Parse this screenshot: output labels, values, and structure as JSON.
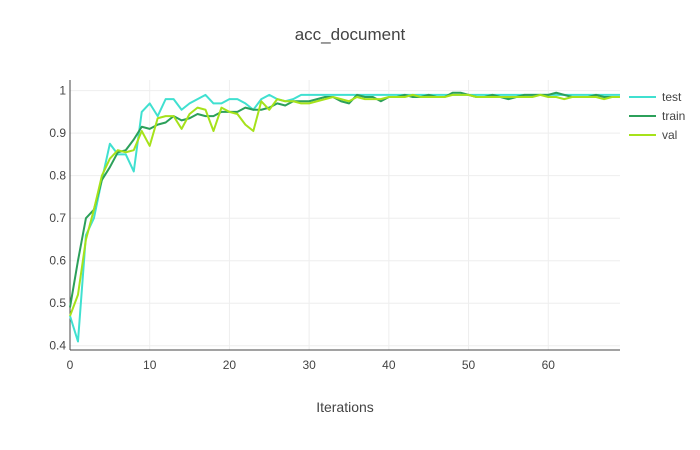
{
  "chart_data": {
    "type": "line",
    "title": "acc_document",
    "xlabel": "Iterations",
    "ylabel": "",
    "xlim": [
      0,
      69
    ],
    "ylim": [
      0.39,
      1.025
    ],
    "xticks": [
      0,
      10,
      20,
      30,
      40,
      50,
      60
    ],
    "yticks": [
      0.4,
      0.5,
      0.6,
      0.7,
      0.8,
      0.9,
      1
    ],
    "grid": true,
    "legend_position": "top-right",
    "series": [
      {
        "name": "test",
        "color": "#40e0d0",
        "x": [
          0,
          1,
          2,
          3,
          4,
          5,
          6,
          7,
          8,
          9,
          10,
          11,
          12,
          13,
          14,
          15,
          16,
          17,
          18,
          19,
          20,
          21,
          22,
          23,
          24,
          25,
          26,
          27,
          28,
          29,
          30,
          31,
          32,
          33,
          34,
          35,
          36,
          37,
          38,
          39,
          40,
          41,
          42,
          43,
          44,
          45,
          46,
          47,
          48,
          49,
          50,
          51,
          52,
          53,
          54,
          55,
          56,
          57,
          58,
          59,
          60,
          61,
          62,
          63,
          64,
          65,
          66,
          67,
          68,
          69
        ],
        "y": [
          0.47,
          0.41,
          0.66,
          0.7,
          0.79,
          0.875,
          0.85,
          0.85,
          0.81,
          0.95,
          0.97,
          0.94,
          0.98,
          0.98,
          0.955,
          0.97,
          0.98,
          0.99,
          0.97,
          0.97,
          0.98,
          0.98,
          0.97,
          0.955,
          0.98,
          0.99,
          0.98,
          0.975,
          0.98,
          0.99,
          0.99,
          0.99,
          0.99,
          0.99,
          0.99,
          0.99,
          0.99,
          0.99,
          0.99,
          0.99,
          0.99,
          0.99,
          0.99,
          0.99,
          0.99,
          0.99,
          0.99,
          0.99,
          0.99,
          0.99,
          0.99,
          0.99,
          0.99,
          0.99,
          0.99,
          0.99,
          0.99,
          0.99,
          0.99,
          0.99,
          0.99,
          0.99,
          0.99,
          0.99,
          0.99,
          0.99,
          0.99,
          0.99,
          0.99,
          0.99
        ]
      },
      {
        "name": "train",
        "color": "#2ca05a",
        "x": [
          0,
          1,
          2,
          3,
          4,
          5,
          6,
          7,
          8,
          9,
          10,
          11,
          12,
          13,
          14,
          15,
          16,
          17,
          18,
          19,
          20,
          21,
          22,
          23,
          24,
          25,
          26,
          27,
          28,
          29,
          30,
          31,
          32,
          33,
          34,
          35,
          36,
          37,
          38,
          39,
          40,
          41,
          42,
          43,
          44,
          45,
          46,
          47,
          48,
          49,
          50,
          51,
          52,
          53,
          54,
          55,
          56,
          57,
          58,
          59,
          60,
          61,
          62,
          63,
          64,
          65,
          66,
          67,
          68,
          69
        ],
        "y": [
          0.49,
          0.6,
          0.7,
          0.72,
          0.79,
          0.82,
          0.855,
          0.86,
          0.885,
          0.915,
          0.91,
          0.92,
          0.925,
          0.94,
          0.93,
          0.935,
          0.945,
          0.94,
          0.94,
          0.95,
          0.95,
          0.95,
          0.96,
          0.955,
          0.955,
          0.96,
          0.97,
          0.965,
          0.975,
          0.975,
          0.975,
          0.98,
          0.985,
          0.985,
          0.975,
          0.97,
          0.99,
          0.985,
          0.985,
          0.975,
          0.985,
          0.985,
          0.99,
          0.985,
          0.985,
          0.99,
          0.985,
          0.985,
          0.995,
          0.995,
          0.99,
          0.985,
          0.985,
          0.99,
          0.985,
          0.98,
          0.985,
          0.99,
          0.99,
          0.99,
          0.99,
          0.995,
          0.99,
          0.985,
          0.985,
          0.985,
          0.99,
          0.985,
          0.985,
          0.985
        ]
      },
      {
        "name": "val",
        "color": "#a6e21a",
        "x": [
          0,
          1,
          2,
          3,
          4,
          5,
          6,
          7,
          8,
          9,
          10,
          11,
          12,
          13,
          14,
          15,
          16,
          17,
          18,
          19,
          20,
          21,
          22,
          23,
          24,
          25,
          26,
          27,
          28,
          29,
          30,
          31,
          32,
          33,
          34,
          35,
          36,
          37,
          38,
          39,
          40,
          41,
          42,
          43,
          44,
          45,
          46,
          47,
          48,
          49,
          50,
          51,
          52,
          53,
          54,
          55,
          56,
          57,
          58,
          59,
          60,
          61,
          62,
          63,
          64,
          65,
          66,
          67,
          68,
          69
        ],
        "y": [
          0.47,
          0.52,
          0.65,
          0.72,
          0.8,
          0.84,
          0.86,
          0.855,
          0.86,
          0.905,
          0.87,
          0.935,
          0.94,
          0.94,
          0.91,
          0.945,
          0.96,
          0.955,
          0.905,
          0.96,
          0.95,
          0.945,
          0.92,
          0.905,
          0.975,
          0.955,
          0.98,
          0.975,
          0.975,
          0.97,
          0.97,
          0.975,
          0.98,
          0.985,
          0.98,
          0.975,
          0.985,
          0.98,
          0.98,
          0.98,
          0.985,
          0.985,
          0.985,
          0.99,
          0.985,
          0.985,
          0.985,
          0.985,
          0.99,
          0.99,
          0.99,
          0.985,
          0.985,
          0.985,
          0.985,
          0.985,
          0.985,
          0.985,
          0.985,
          0.99,
          0.985,
          0.985,
          0.98,
          0.985,
          0.985,
          0.985,
          0.985,
          0.98,
          0.985,
          0.985
        ]
      }
    ]
  }
}
